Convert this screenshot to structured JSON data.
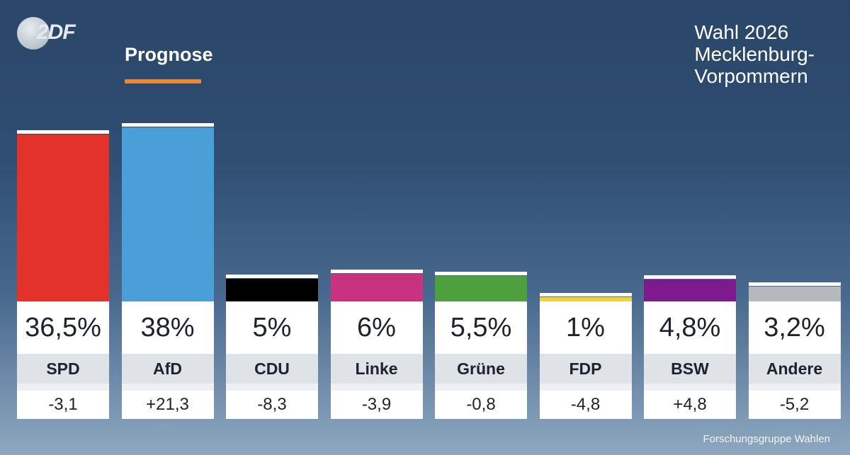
{
  "logo": {
    "text": "2DF",
    "icon": "zdf-logo-icon"
  },
  "header": {
    "label": "Prognose",
    "accent": "#e8893a"
  },
  "title_lines": [
    "Wahl 2026",
    "Mecklenburg-",
    "Vorpommern"
  ],
  "source": "Forschungsgruppe Wahlen",
  "chart_data": {
    "type": "bar",
    "categories": [
      "SPD",
      "AfD",
      "CDU",
      "Linke",
      "Grüne",
      "FDP",
      "BSW",
      "Andere"
    ],
    "values": [
      36.5,
      38,
      5,
      6,
      5.5,
      1,
      4.8,
      3.2
    ],
    "value_labels": [
      "36,5%",
      "38%",
      "5%",
      "6%",
      "5,5%",
      "1%",
      "4,8%",
      "3,2%"
    ],
    "diff_labels": [
      "-3,1",
      "+21,3",
      "-8,3",
      "-3,9",
      "-0,8",
      "-4,8",
      "+4,8",
      "-5,2"
    ],
    "colors": [
      "#e3312b",
      "#4a9fd8",
      "#000000",
      "#c8327f",
      "#4e9f3d",
      "#f2d33c",
      "#7f1a8c",
      "#b5b9be"
    ],
    "ylim": [
      0,
      38
    ],
    "title": "Prognose",
    "xlabel": "",
    "ylabel": "",
    "grid": false,
    "legend": "none"
  }
}
